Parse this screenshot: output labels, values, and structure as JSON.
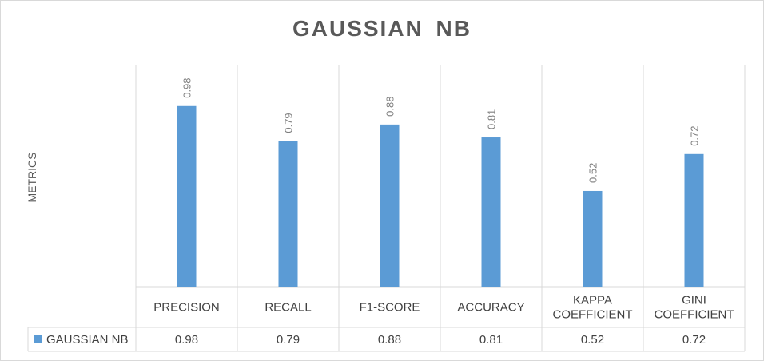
{
  "chart_data": {
    "type": "bar",
    "title": "GAUSSIAN NB",
    "ylabel": "METRICS",
    "xlabel": "",
    "categories": [
      [
        "PRECISION"
      ],
      [
        "RECALL"
      ],
      [
        "F1-SCORE"
      ],
      [
        "ACCURACY"
      ],
      [
        "KAPPA",
        "COEFFICIENT"
      ],
      [
        "GINI",
        "COEFFICIENT"
      ]
    ],
    "series": [
      {
        "name": "GAUSSIAN NB",
        "values": [
          0.98,
          0.79,
          0.88,
          0.81,
          0.52,
          0.72
        ],
        "labels": [
          "0.98",
          "0.79",
          "0.88",
          "0.81",
          "0.52",
          "0.72"
        ],
        "color": "#5b9bd5"
      }
    ],
    "ylim": [
      0,
      1.2
    ],
    "data_table": true,
    "legend": "data-table"
  }
}
